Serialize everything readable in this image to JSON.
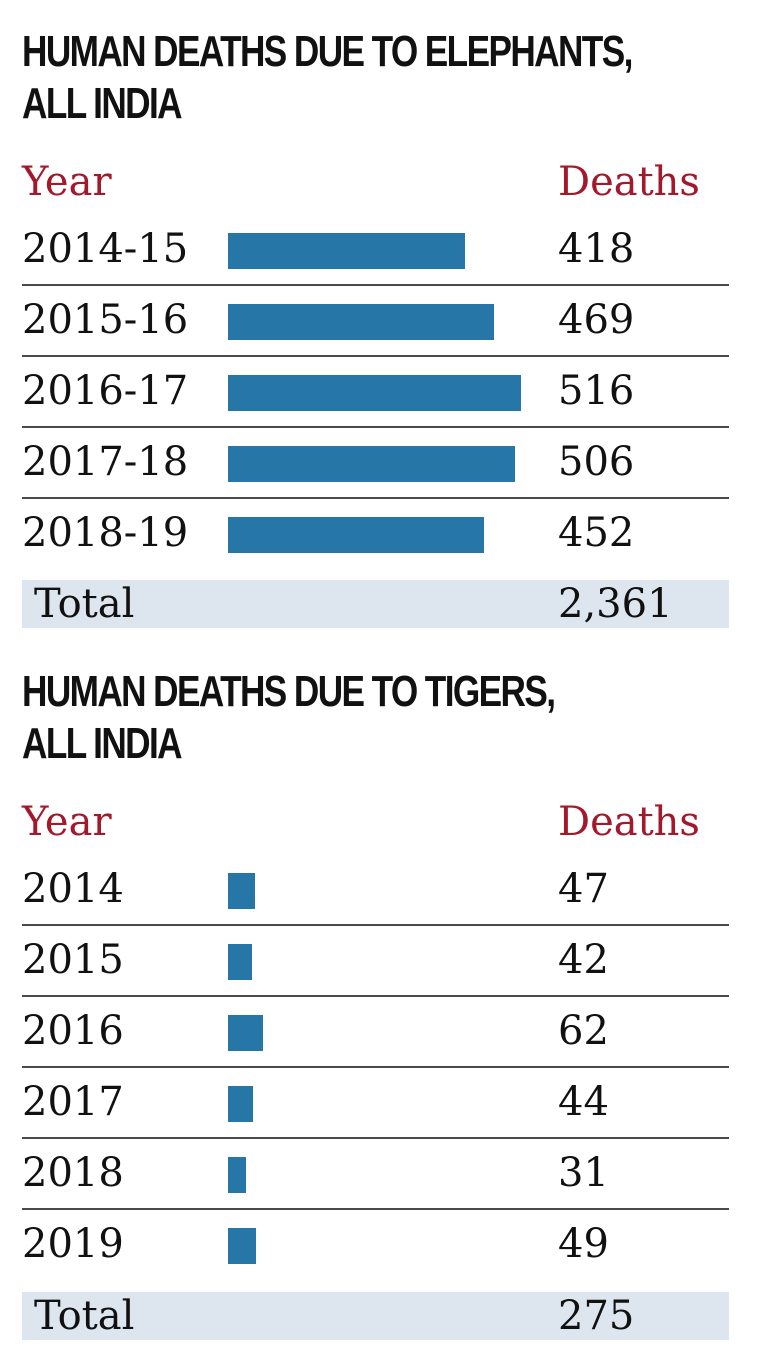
{
  "colors": {
    "bar": "#2677a8",
    "header": "#a3182b",
    "total_band": "#dde6ef",
    "separator": "#4a4a4a"
  },
  "chart_data": [
    {
      "type": "bar",
      "orientation": "horizontal",
      "title_lines": [
        "HUMAN DEATHS DUE TO ELEPHANTS,",
        "ALL INDIA"
      ],
      "col_header_left": "Year",
      "col_header_right": "Deaths",
      "categories": [
        "2014-15",
        "2015-16",
        "2016-17",
        "2017-18",
        "2018-19"
      ],
      "values": [
        418,
        469,
        516,
        506,
        452
      ],
      "value_labels": [
        "418",
        "469",
        "516",
        "506",
        "452"
      ],
      "total_label": "Total",
      "total_value": "2,361",
      "xlim": [
        0,
        520
      ]
    },
    {
      "type": "bar",
      "orientation": "horizontal",
      "title_lines": [
        "HUMAN DEATHS DUE TO TIGERS,",
        "ALL INDIA"
      ],
      "col_header_left": "Year",
      "col_header_right": "Deaths",
      "categories": [
        "2014",
        "2015",
        "2016",
        "2017",
        "2018",
        "2019"
      ],
      "values": [
        47,
        42,
        62,
        44,
        31,
        49
      ],
      "value_labels": [
        "47",
        "42",
        "62",
        "44",
        "31",
        "49"
      ],
      "total_label": "Total",
      "total_value": "275",
      "xlim": [
        0,
        520
      ]
    }
  ]
}
